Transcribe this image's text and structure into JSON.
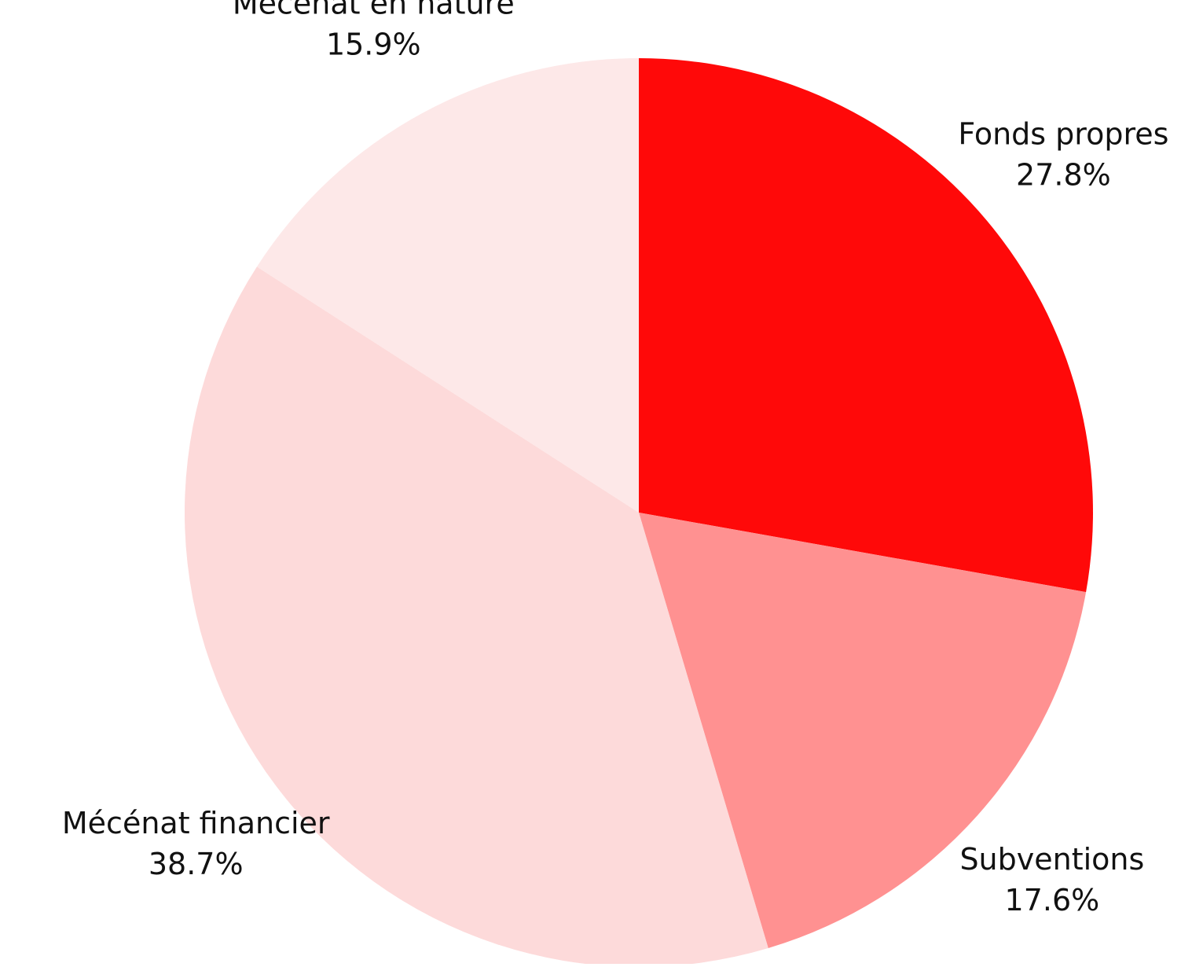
{
  "chart_data": {
    "type": "pie",
    "categories": [
      "Fonds propres",
      "Subventions",
      "Mécénat financier",
      "Mécénat en nature"
    ],
    "values": [
      27.8,
      17.6,
      38.7,
      15.9
    ],
    "value_labels": [
      "27.8%",
      "17.6%",
      "38.7%",
      "15.9%"
    ],
    "colors": [
      "#ff0909",
      "#ff9191",
      "#fddada",
      "#fde8e8"
    ]
  }
}
